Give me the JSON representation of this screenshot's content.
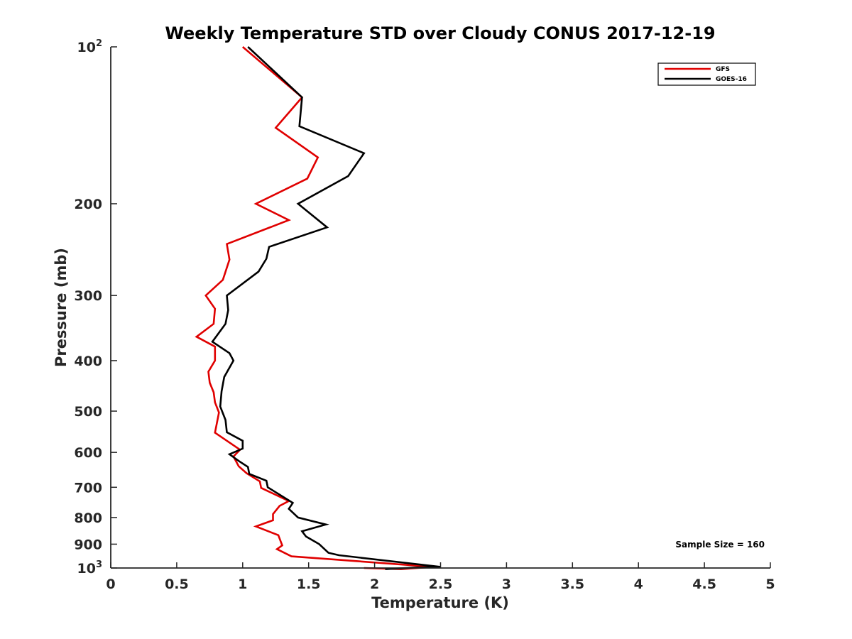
{
  "chart_data": {
    "type": "line",
    "title": "Weekly Temperature STD over Cloudy CONUS 2017-12-19",
    "xlabel": "Temperature (K)",
    "ylabel": "Pressure (mb)",
    "xlim": [
      0,
      5
    ],
    "ylim": [
      100,
      1000
    ],
    "yscale": "log",
    "y_reversed": true,
    "grid": false,
    "legend_position": "top-right",
    "x_ticks": [
      0,
      0.5,
      1,
      1.5,
      2,
      2.5,
      3,
      3.5,
      4,
      4.5,
      5
    ],
    "x_tick_labels": [
      "0",
      "0.5",
      "1",
      "1.5",
      "2",
      "2.5",
      "3",
      "3.5",
      "4",
      "4.5",
      "5"
    ],
    "y_ticks": [
      {
        "value": 100,
        "label": "10",
        "exp": "2"
      },
      {
        "value": 200,
        "label": "200",
        "exp": ""
      },
      {
        "value": 300,
        "label": "300",
        "exp": ""
      },
      {
        "value": 400,
        "label": "400",
        "exp": ""
      },
      {
        "value": 500,
        "label": "500",
        "exp": ""
      },
      {
        "value": 600,
        "label": "600",
        "exp": ""
      },
      {
        "value": 700,
        "label": "700",
        "exp": ""
      },
      {
        "value": 800,
        "label": "800",
        "exp": ""
      },
      {
        "value": 900,
        "label": "900",
        "exp": ""
      },
      {
        "value": 1000,
        "label": "10",
        "exp": "3"
      }
    ],
    "annotation": "Sample Size = 160",
    "series": [
      {
        "name": "GFS",
        "color": "#e00000",
        "points": [
          [
            1.0,
            100
          ],
          [
            1.45,
            125
          ],
          [
            1.25,
            143
          ],
          [
            1.57,
            163
          ],
          [
            1.49,
            179
          ],
          [
            1.1,
            200
          ],
          [
            1.35,
            215
          ],
          [
            0.88,
            239
          ],
          [
            0.9,
            256
          ],
          [
            0.85,
            280
          ],
          [
            0.72,
            300
          ],
          [
            0.79,
            318
          ],
          [
            0.78,
            340
          ],
          [
            0.65,
            360
          ],
          [
            0.79,
            376
          ],
          [
            0.79,
            400
          ],
          [
            0.74,
            420
          ],
          [
            0.75,
            441
          ],
          [
            0.78,
            460
          ],
          [
            0.79,
            481
          ],
          [
            0.82,
            503
          ],
          [
            0.79,
            550
          ],
          [
            0.98,
            593
          ],
          [
            0.93,
            611
          ],
          [
            0.97,
            638
          ],
          [
            1.03,
            658
          ],
          [
            1.13,
            682
          ],
          [
            1.14,
            702
          ],
          [
            1.35,
            744
          ],
          [
            1.28,
            760
          ],
          [
            1.23,
            788
          ],
          [
            1.23,
            810
          ],
          [
            1.1,
            832
          ],
          [
            1.27,
            865
          ],
          [
            1.3,
            905
          ],
          [
            1.26,
            920
          ],
          [
            1.37,
            950
          ],
          [
            2.45,
            995
          ],
          [
            2.2,
            1005
          ],
          [
            1.92,
            1000
          ]
        ]
      },
      {
        "name": "GOES-16",
        "color": "#000000",
        "points": [
          [
            1.04,
            100
          ],
          [
            1.45,
            125
          ],
          [
            1.43,
            142
          ],
          [
            1.92,
            160
          ],
          [
            1.8,
            177
          ],
          [
            1.42,
            200
          ],
          [
            1.64,
            222
          ],
          [
            1.2,
            242
          ],
          [
            1.18,
            255
          ],
          [
            1.12,
            270
          ],
          [
            0.88,
            300
          ],
          [
            0.89,
            320
          ],
          [
            0.87,
            340
          ],
          [
            0.77,
            368
          ],
          [
            0.9,
            387
          ],
          [
            0.93,
            400
          ],
          [
            0.86,
            430
          ],
          [
            0.84,
            458
          ],
          [
            0.83,
            490
          ],
          [
            0.87,
            520
          ],
          [
            0.88,
            549
          ],
          [
            1.0,
            570
          ],
          [
            1.0,
            590
          ],
          [
            0.9,
            605
          ],
          [
            0.97,
            623
          ],
          [
            1.04,
            640
          ],
          [
            1.05,
            660
          ],
          [
            1.18,
            680
          ],
          [
            1.19,
            700
          ],
          [
            1.38,
            750
          ],
          [
            1.35,
            770
          ],
          [
            1.42,
            800
          ],
          [
            1.63,
            825
          ],
          [
            1.45,
            850
          ],
          [
            1.48,
            870
          ],
          [
            1.58,
            900
          ],
          [
            1.65,
            935
          ],
          [
            1.73,
            945
          ],
          [
            2.5,
            995
          ],
          [
            2.3,
            998
          ],
          [
            2.08,
            1005
          ]
        ]
      }
    ]
  }
}
